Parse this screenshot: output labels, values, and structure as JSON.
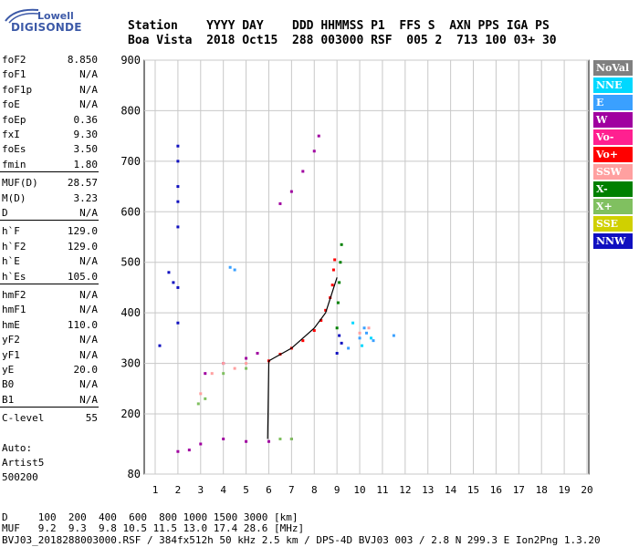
{
  "logo": {
    "top": "Lowell",
    "bottom": "DIGISONDE"
  },
  "header": {
    "line1": "Station    YYYY DAY    DDD HHMMSS P1  FFS S  AXN PPS IGA PS",
    "line2": "Boa Vista  2018 Oct15  288 003000 RSF  005 2  713 100 03+ 30"
  },
  "params": [
    {
      "name": "foF2",
      "value": "8.850"
    },
    {
      "name": "foF1",
      "value": "N/A"
    },
    {
      "name": "foF1p",
      "value": "N/A"
    },
    {
      "name": "foE",
      "value": "N/A"
    },
    {
      "name": "foEp",
      "value": "0.36"
    },
    {
      "name": "fxI",
      "value": "9.30"
    },
    {
      "name": "foEs",
      "value": "3.50"
    },
    {
      "name": "fmin",
      "value": "1.80"
    },
    {
      "name": "MUF(D)",
      "value": "28.57"
    },
    {
      "name": "M(D)",
      "value": "3.23"
    },
    {
      "name": "D",
      "value": "N/A"
    },
    {
      "name": "h`F",
      "value": "129.0"
    },
    {
      "name": "h`F2",
      "value": "129.0"
    },
    {
      "name": "h`E",
      "value": "N/A"
    },
    {
      "name": "h`Es",
      "value": "105.0"
    },
    {
      "name": "hmF2",
      "value": "N/A"
    },
    {
      "name": "hmF1",
      "value": "N/A"
    },
    {
      "name": "hmE",
      "value": "110.0"
    },
    {
      "name": "yF2",
      "value": "N/A"
    },
    {
      "name": "yF1",
      "value": "N/A"
    },
    {
      "name": "yE",
      "value": "20.0"
    },
    {
      "name": "B0",
      "value": "N/A"
    },
    {
      "name": "B1",
      "value": "N/A"
    },
    {
      "name": "C-level",
      "value": "55"
    }
  ],
  "extra": {
    "l1": "Auto:",
    "l2": "Artist5",
    "l3": "500200"
  },
  "legend": [
    {
      "label": "NoVal",
      "color": "#808080"
    },
    {
      "label": "NNE",
      "color": "#00d8ff"
    },
    {
      "label": "E",
      "color": "#3aa0ff"
    },
    {
      "label": "W",
      "color": "#a000a0"
    },
    {
      "label": "Vo-",
      "color": "#ff2090"
    },
    {
      "label": "Vo+",
      "color": "#ff0000"
    },
    {
      "label": "SSW",
      "color": "#ffa0a0"
    },
    {
      "label": "X-",
      "color": "#008000"
    },
    {
      "label": "X+",
      "color": "#80c060"
    },
    {
      "label": "SSE",
      "color": "#d0d000"
    },
    {
      "label": "NNW",
      "color": "#1010c0"
    }
  ],
  "footer": {
    "line1": "D     100  200  400  600  800 1000 1500 3000 [km]",
    "line2": "MUF   9.2  9.3  9.8 10.5 11.5 13.0 17.4 28.6 [MHz]",
    "line3": "BVJ03_2018288003000.RSF / 384fx512h 50 kHz 2.5 km / DPS-4D BVJ03 003 / 2.8 N 299.3 E Ion2Png 1.3.20"
  },
  "chart_data": {
    "type": "scatter",
    "xlim": [
      0.5,
      20
    ],
    "ylim": [
      80,
      900
    ],
    "xticks": [
      1,
      2,
      3,
      4,
      5,
      6,
      7,
      8,
      9,
      10,
      11,
      12,
      13,
      14,
      15,
      16,
      17,
      18,
      19,
      20
    ],
    "yticks": [
      80,
      200,
      300,
      400,
      500,
      600,
      700,
      800,
      900
    ],
    "grid": true,
    "series": [
      {
        "name": "Vo+",
        "color": "#ff0000",
        "points": [
          [
            6.0,
            305
          ],
          [
            6.5,
            318
          ],
          [
            7.0,
            330
          ],
          [
            7.5,
            345
          ],
          [
            8.0,
            365
          ],
          [
            8.3,
            385
          ],
          [
            8.5,
            405
          ],
          [
            8.7,
            430
          ],
          [
            8.8,
            455
          ],
          [
            8.85,
            485
          ],
          [
            8.9,
            505
          ]
        ]
      },
      {
        "name": "X-",
        "color": "#008000",
        "points": [
          [
            9.0,
            370
          ],
          [
            9.05,
            420
          ],
          [
            9.1,
            460
          ],
          [
            9.15,
            500
          ],
          [
            9.2,
            535
          ]
        ]
      },
      {
        "name": "W",
        "color": "#a000a0",
        "points": [
          [
            2.0,
            125
          ],
          [
            2.5,
            128
          ],
          [
            3.0,
            140
          ],
          [
            4.0,
            150
          ],
          [
            5.0,
            145
          ],
          [
            6.0,
            145
          ],
          [
            7.0,
            150
          ],
          [
            3.2,
            280
          ],
          [
            4.0,
            300
          ],
          [
            5.0,
            310
          ],
          [
            5.5,
            320
          ],
          [
            6.5,
            616
          ],
          [
            7.0,
            640
          ],
          [
            7.5,
            680
          ],
          [
            8.0,
            720
          ],
          [
            8.2,
            750
          ]
        ]
      },
      {
        "name": "E",
        "color": "#3aa0ff",
        "points": [
          [
            9.5,
            330
          ],
          [
            10.0,
            350
          ],
          [
            10.3,
            360
          ],
          [
            10.6,
            345
          ],
          [
            10.2,
            370
          ],
          [
            11.5,
            355
          ],
          [
            4.3,
            490
          ],
          [
            4.5,
            485
          ]
        ]
      },
      {
        "name": "SSW",
        "color": "#ffa0a0",
        "points": [
          [
            3.0,
            240
          ],
          [
            3.5,
            280
          ],
          [
            4.0,
            300
          ],
          [
            4.5,
            290
          ],
          [
            5.0,
            300
          ],
          [
            10.0,
            360
          ],
          [
            10.4,
            370
          ]
        ]
      },
      {
        "name": "NNW",
        "color": "#1010c0",
        "points": [
          [
            2.0,
            730
          ],
          [
            2.0,
            700
          ],
          [
            2.0,
            650
          ],
          [
            2.0,
            620
          ],
          [
            2.0,
            570
          ],
          [
            2.0,
            450
          ],
          [
            2.0,
            380
          ],
          [
            1.8,
            460
          ],
          [
            1.6,
            480
          ],
          [
            1.2,
            335
          ],
          [
            9.0,
            320
          ],
          [
            9.1,
            355
          ],
          [
            9.2,
            340
          ]
        ]
      },
      {
        "name": "X+",
        "color": "#80c060",
        "points": [
          [
            4.0,
            280
          ],
          [
            5.0,
            290
          ],
          [
            6.5,
            150
          ],
          [
            7.0,
            150
          ],
          [
            2.9,
            220
          ],
          [
            3.2,
            230
          ]
        ]
      },
      {
        "name": "NNE",
        "color": "#00d8ff",
        "points": [
          [
            10.1,
            335
          ],
          [
            10.5,
            350
          ],
          [
            9.7,
            380
          ]
        ]
      }
    ],
    "trace_line": [
      [
        5.95,
        150
      ],
      [
        6.0,
        305
      ],
      [
        6.2,
        310
      ],
      [
        7.0,
        330
      ],
      [
        8.0,
        370
      ],
      [
        8.5,
        400
      ],
      [
        9.0,
        470
      ]
    ]
  }
}
